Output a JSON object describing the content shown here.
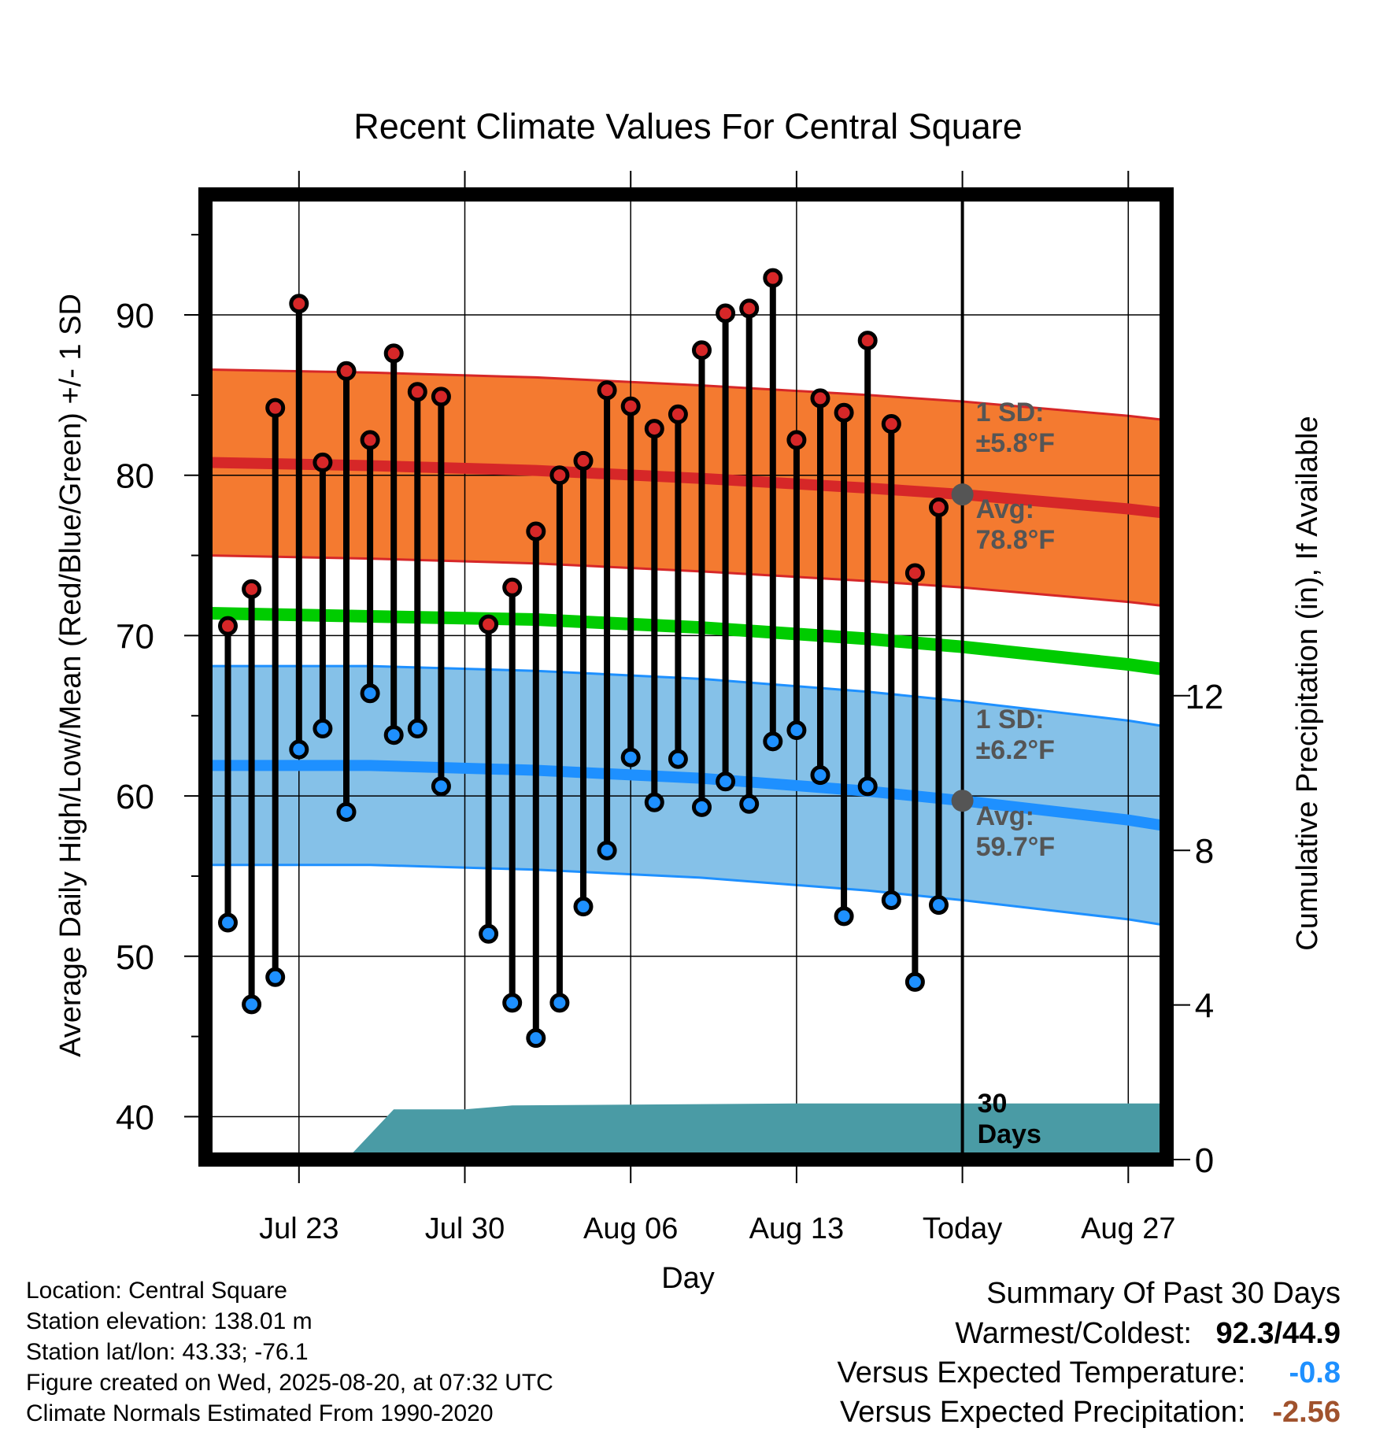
{
  "chart_data": {
    "type": "line",
    "title": "Recent Climate Values For Central Square",
    "xlabel": "Day",
    "ylabel": "Average Daily High/Low/Mean (Red/Blue/Green) +/- 1 SD",
    "y2label": "Cumulative Precipitation (in), If Available",
    "ylim": [
      37,
      98
    ],
    "y_ticks": [
      40,
      50,
      60,
      70,
      80,
      90
    ],
    "y2lim": [
      0,
      28
    ],
    "y2_ticks": [
      0,
      4,
      8,
      12
    ],
    "x_tick_labels": [
      "Jul 23",
      "Jul 30",
      "Aug 06",
      "Aug 13",
      "Today",
      "Aug 27"
    ],
    "today": "2025-08-20",
    "grid": true,
    "daily": {
      "dates": [
        "Jul 20",
        "Jul 21",
        "Jul 22",
        "Jul 23",
        "Jul 24",
        "Jul 25",
        "Jul 26",
        "Jul 27",
        "Jul 28",
        "Jul 29",
        "Jul 30",
        "Jul 31",
        "Aug 01",
        "Aug 02",
        "Aug 03",
        "Aug 04",
        "Aug 05",
        "Aug 06",
        "Aug 07",
        "Aug 08",
        "Aug 09",
        "Aug 10",
        "Aug 11",
        "Aug 12",
        "Aug 13",
        "Aug 14",
        "Aug 15",
        "Aug 16",
        "Aug 17",
        "Aug 18",
        "Aug 19"
      ],
      "high": [
        70.6,
        72.9,
        84.2,
        90.7,
        80.8,
        86.5,
        82.2,
        87.6,
        85.2,
        84.9,
        null,
        70.7,
        73.0,
        76.5,
        80.0,
        80.9,
        85.3,
        84.3,
        82.9,
        83.8,
        87.8,
        90.1,
        90.4,
        92.3,
        82.2,
        84.8,
        83.9,
        88.4,
        83.2,
        73.9,
        78.0
      ],
      "low": [
        52.1,
        47.0,
        48.7,
        62.9,
        64.2,
        59.0,
        66.4,
        63.8,
        64.2,
        60.6,
        null,
        51.4,
        47.1,
        44.9,
        47.1,
        53.1,
        56.6,
        62.4,
        59.6,
        62.3,
        59.3,
        60.9,
        59.5,
        63.4,
        64.1,
        61.3,
        52.5,
        60.6,
        53.5,
        48.4,
        53.2
      ]
    },
    "normals": {
      "dates": [
        "Jul 19",
        "Jul 26",
        "Aug 02",
        "Aug 09",
        "Aug 16",
        "Aug 20",
        "Aug 27",
        "Aug 30"
      ],
      "avg_high": [
        80.8,
        80.6,
        80.3,
        79.8,
        79.2,
        78.8,
        77.9,
        77.4
      ],
      "avg_low": [
        61.9,
        61.9,
        61.6,
        61.1,
        60.3,
        59.7,
        58.5,
        57.8
      ],
      "avg_mean": [
        71.4,
        71.2,
        71.0,
        70.5,
        69.8,
        69.3,
        68.2,
        67.6
      ],
      "high_sd": 5.8,
      "low_sd": 6.2
    },
    "precip": {
      "dates": [
        "Jul 19",
        "Jul 25",
        "Jul 27",
        "Jul 30",
        "Aug 01",
        "Aug 13",
        "Aug 20",
        "Aug 30"
      ],
      "cumulative": [
        0,
        0,
        1.3,
        1.3,
        1.4,
        1.45,
        1.45,
        1.45
      ]
    },
    "annotations": {
      "high_sd": {
        "l1": "1 SD:",
        "l2": "±5.8°F"
      },
      "high_avg": {
        "l1": "Avg:",
        "l2": "78.8°F"
      },
      "low_sd": {
        "l1": "1 SD:",
        "l2": "±6.2°F"
      },
      "low_avg": {
        "l1": "Avg:",
        "l2": "59.7°F"
      },
      "period": {
        "l1": "30",
        "l2": "Days"
      }
    },
    "colors": {
      "high_band": "#f47a30",
      "high_line": "#d62728",
      "high_marker": "#d62728",
      "low_band": "#85c1e8",
      "low_line": "#1e90ff",
      "low_marker": "#1e90ff",
      "mean_line": "#00cc00",
      "precip_fill": "#4a9ba5",
      "annotation_text": "#555555",
      "today_marker": "#555555"
    }
  },
  "info": {
    "location": "Location: Central Square",
    "elevation": "Station elevation: 138.01 m",
    "latlon": "Station lat/lon: 43.33; -76.1",
    "created": "Figure created on Wed, 2025-08-20, at 07:32 UTC",
    "normals": "Climate Normals Estimated From 1990-2020"
  },
  "summary": {
    "title": "Summary Of Past 30 Days",
    "warm_cold_label": "Warmest/Coldest:",
    "warm_cold_value": "92.3/44.9",
    "temp_label": "Versus Expected Temperature:",
    "temp_value": "-0.8",
    "temp_color": "#1e90ff",
    "precip_label": "Versus Expected Precipitation:",
    "precip_value": "-2.56",
    "precip_color": "#a0522d"
  }
}
